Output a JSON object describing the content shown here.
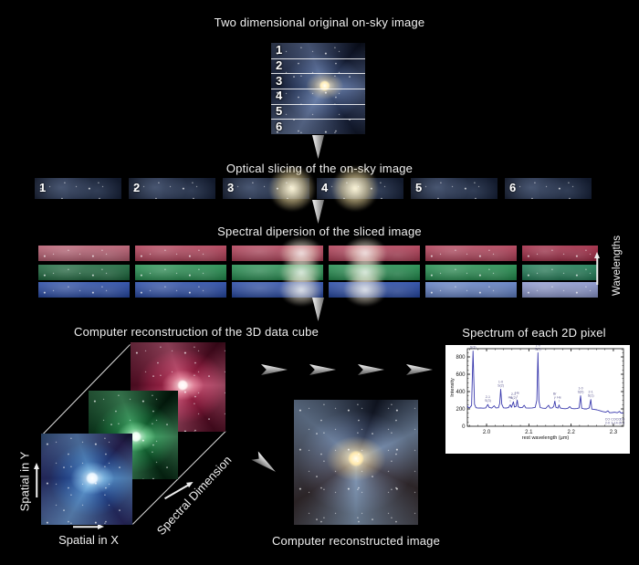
{
  "titles": {
    "top": "Two dimensional original on-sky image",
    "slicing": "Optical slicing of the on-sky image",
    "dispersion": "Spectral dipersion of the sliced image",
    "cube": "Computer reconstruction of the 3D data cube",
    "spectrum": "Spectrum of each 2D pixel",
    "reconstructed": "Computer reconstructed image"
  },
  "slices": {
    "labels": [
      "1",
      "2",
      "3",
      "4",
      "5",
      "6"
    ]
  },
  "dispersion": {
    "wavelengths_label": "Wavelengths",
    "rows": [
      "red",
      "green",
      "blue"
    ]
  },
  "cube": {
    "axis_y": "Spatial in Y",
    "axis_x": "Spatial in X",
    "axis_z": "Spectral Dimension"
  },
  "colors": {
    "dispersion_red": "#b13c55",
    "dispersion_green": "#1f8c4c",
    "dispersion_blue": "#2447a5",
    "spectrum_line": "#3a3aad",
    "panel_bg": "#ffffff",
    "background": "#000000"
  },
  "chart_data": {
    "type": "line",
    "title": "Spectrum of each 2D pixel",
    "xlabel": "rest wavelength (μm)",
    "ylabel": "Intensity",
    "xticks": [
      2.0,
      2.1,
      2.2,
      2.3
    ],
    "yticks": [
      0,
      200,
      400,
      600,
      800
    ],
    "xlim": [
      1.9546,
      2.3239
    ],
    "ylim": [
      0,
      895
    ],
    "grid": false,
    "legend": false,
    "line_color": "#3a3aad",
    "points": [
      [
        1.9546,
        238
      ],
      [
        1.957,
        215
      ],
      [
        1.96,
        213
      ],
      [
        1.9645,
        240
      ],
      [
        1.968,
        868
      ],
      [
        1.9715,
        255
      ],
      [
        1.975,
        214
      ],
      [
        1.98,
        210
      ],
      [
        1.986,
        212
      ],
      [
        1.992,
        208
      ],
      [
        1.998,
        212
      ],
      [
        2.003,
        252
      ],
      [
        2.006,
        218
      ],
      [
        2.012,
        210
      ],
      [
        2.018,
        236
      ],
      [
        2.022,
        212
      ],
      [
        2.028,
        214
      ],
      [
        2.031,
        260
      ],
      [
        2.0335,
        428
      ],
      [
        2.036,
        255
      ],
      [
        2.04,
        213
      ],
      [
        2.046,
        210
      ],
      [
        2.052,
        216
      ],
      [
        2.056,
        248
      ],
      [
        2.059,
        218
      ],
      [
        2.0635,
        282
      ],
      [
        2.066,
        222
      ],
      [
        2.07,
        230
      ],
      [
        2.0725,
        302
      ],
      [
        2.075,
        224
      ],
      [
        2.08,
        214
      ],
      [
        2.085,
        218
      ],
      [
        2.089,
        242
      ],
      [
        2.093,
        212
      ],
      [
        2.1,
        210
      ],
      [
        2.108,
        212
      ],
      [
        2.115,
        218
      ],
      [
        2.119,
        300
      ],
      [
        2.1215,
        848
      ],
      [
        2.124,
        290
      ],
      [
        2.127,
        216
      ],
      [
        2.133,
        208
      ],
      [
        2.14,
        206
      ],
      [
        2.1465,
        242
      ],
      [
        2.15,
        210
      ],
      [
        2.155,
        212
      ],
      [
        2.159,
        230
      ],
      [
        2.1615,
        292
      ],
      [
        2.164,
        218
      ],
      [
        2.169,
        210
      ],
      [
        2.1715,
        246
      ],
      [
        2.174,
        212
      ],
      [
        2.18,
        204
      ],
      [
        2.186,
        202
      ],
      [
        2.192,
        206
      ],
      [
        2.197,
        226
      ],
      [
        2.201,
        204
      ],
      [
        2.208,
        202
      ],
      [
        2.214,
        204
      ],
      [
        2.219,
        212
      ],
      [
        2.2225,
        352
      ],
      [
        2.225,
        208
      ],
      [
        2.231,
        200
      ],
      [
        2.237,
        200
      ],
      [
        2.243,
        212
      ],
      [
        2.2465,
        308
      ],
      [
        2.249,
        198
      ],
      [
        2.255,
        194
      ],
      [
        2.261,
        190
      ],
      [
        2.268,
        180
      ],
      [
        2.275,
        170
      ],
      [
        2.282,
        162
      ],
      [
        2.287,
        178
      ],
      [
        2.291,
        156
      ],
      [
        2.297,
        158
      ],
      [
        2.303,
        162
      ],
      [
        2.309,
        156
      ],
      [
        2.3145,
        172
      ],
      [
        2.318,
        152
      ],
      [
        2.3239,
        156
      ]
    ],
    "annotations": [
      {
        "x": 1.968,
        "y": 868,
        "lines": [
          "1-0",
          "S(3)"
        ]
      },
      {
        "x": 2.003,
        "y": 252,
        "lines": [
          "2-1",
          "S(3)"
        ]
      },
      {
        "x": 2.0335,
        "y": 428,
        "lines": [
          "1-0",
          "S(2)"
        ]
      },
      {
        "x": 2.056,
        "y": 248,
        "lines": [
          "He",
          "I"
        ]
      },
      {
        "x": 2.0635,
        "y": 282,
        "lines": [
          "2-1",
          "S(2)"
        ]
      },
      {
        "x": 2.0725,
        "y": 302,
        "lines": [
          "He",
          "I"
        ]
      },
      {
        "x": 2.1215,
        "y": 848,
        "lines": [
          "1-0",
          "S(1)"
        ]
      },
      {
        "x": 2.1615,
        "y": 292,
        "lines": [
          "Br",
          "γ"
        ]
      },
      {
        "x": 2.1715,
        "y": 246,
        "lines": [
          "He",
          "I"
        ]
      },
      {
        "x": 2.2225,
        "y": 352,
        "lines": [
          "1-0",
          "S(0)"
        ]
      },
      {
        "x": 2.2465,
        "y": 308,
        "lines": [
          "2-1",
          "S(1)"
        ]
      },
      {
        "x": 2.286,
        "y": 120,
        "below": true,
        "lines": [
          "CO",
          "2-0"
        ]
      },
      {
        "x": 2.3,
        "y": 120,
        "below": true,
        "lines": [
          "CO",
          "3-1"
        ]
      },
      {
        "x": 2.3115,
        "y": 120,
        "below": true,
        "lines": [
          "CO",
          "4-2"
        ]
      },
      {
        "x": 2.321,
        "y": 120,
        "below": true,
        "lines": [
          "CO",
          "5-3"
        ]
      }
    ]
  }
}
